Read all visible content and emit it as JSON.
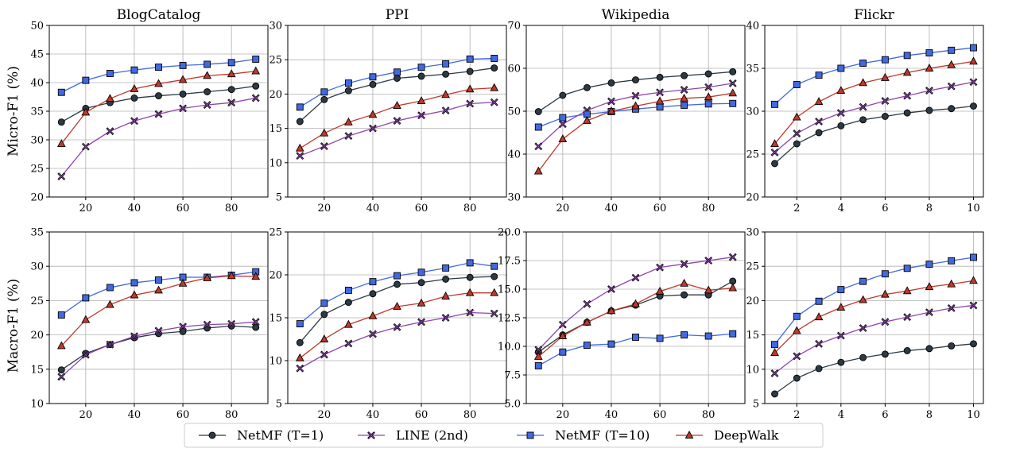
{
  "colors": {
    "netmf_t1": "#2b3a45",
    "line_2nd": "#8e44ad",
    "netmf_t10": "#4169e1",
    "deepwalk": "#c0392b"
  },
  "legend": [
    {
      "name": "NetMF (T=1)",
      "color": "#2b3a45",
      "marker": "circle"
    },
    {
      "name": "LINE (2nd)",
      "color": "#8e44ad",
      "marker": "x"
    },
    {
      "name": "NetMF (T=10)",
      "color": "#4169e1",
      "marker": "square"
    },
    {
      "name": "DeepWalk",
      "color": "#c0392b",
      "marker": "triangle"
    }
  ],
  "row_labels": [
    "Micro-F1 (%)",
    "Macro-F1 (%)"
  ],
  "chart_data": [
    {
      "type": "line",
      "row": 0,
      "col": 0,
      "title": "BlogCatalog",
      "x": [
        10,
        20,
        30,
        40,
        50,
        60,
        70,
        80,
        90
      ],
      "xlim": [
        5,
        95
      ],
      "xticks": [
        20,
        40,
        60,
        80
      ],
      "ylim": [
        20,
        50
      ],
      "yticks": [
        20,
        25,
        30,
        35,
        40,
        45,
        50
      ],
      "ytick_labels": [
        "20",
        "25",
        "30",
        "35",
        "40",
        "45",
        "50"
      ],
      "grid": true,
      "series": [
        {
          "name": "NetMF (T=1)",
          "values": [
            33.1,
            35.5,
            36.5,
            37.3,
            37.7,
            38.0,
            38.4,
            38.8,
            39.4
          ]
        },
        {
          "name": "LINE (2nd)",
          "values": [
            23.6,
            28.8,
            31.5,
            33.3,
            34.5,
            35.5,
            36.1,
            36.5,
            37.3
          ]
        },
        {
          "name": "NetMF (T=10)",
          "values": [
            38.3,
            40.4,
            41.6,
            42.2,
            42.7,
            43.0,
            43.2,
            43.5,
            44.1
          ]
        },
        {
          "name": "DeepWalk",
          "values": [
            29.3,
            34.8,
            37.2,
            38.9,
            39.8,
            40.5,
            41.2,
            41.5,
            42.0
          ]
        }
      ]
    },
    {
      "type": "line",
      "row": 0,
      "col": 1,
      "title": "PPI",
      "x": [
        10,
        20,
        30,
        40,
        50,
        60,
        70,
        80,
        90
      ],
      "xlim": [
        5,
        95
      ],
      "xticks": [
        20,
        40,
        60,
        80
      ],
      "ylim": [
        5,
        30
      ],
      "yticks": [
        5,
        10,
        15,
        20,
        25,
        30
      ],
      "ytick_labels": [
        "5",
        "10",
        "15",
        "20",
        "25",
        "30"
      ],
      "grid": true,
      "series": [
        {
          "name": "NetMF (T=1)",
          "values": [
            16.0,
            19.2,
            20.5,
            21.4,
            22.3,
            22.6,
            22.9,
            23.3,
            23.8
          ]
        },
        {
          "name": "LINE (2nd)",
          "values": [
            11.0,
            12.4,
            13.9,
            15.0,
            16.1,
            16.9,
            17.6,
            18.6,
            18.8
          ]
        },
        {
          "name": "NetMF (T=10)",
          "values": [
            18.1,
            20.3,
            21.6,
            22.5,
            23.2,
            23.9,
            24.4,
            25.1,
            25.2
          ]
        },
        {
          "name": "DeepWalk",
          "values": [
            12.1,
            14.3,
            15.9,
            17.0,
            18.3,
            19.0,
            19.9,
            20.7,
            20.9
          ]
        }
      ]
    },
    {
      "type": "line",
      "row": 0,
      "col": 2,
      "title": "Wikipedia",
      "x": [
        10,
        20,
        30,
        40,
        50,
        60,
        70,
        80,
        90
      ],
      "xlim": [
        5,
        95
      ],
      "xticks": [
        20,
        40,
        60,
        80
      ],
      "ylim": [
        30,
        70
      ],
      "yticks": [
        30,
        40,
        50,
        60,
        70
      ],
      "ytick_labels": [
        "30",
        "40",
        "50",
        "60",
        "70"
      ],
      "grid": true,
      "series": [
        {
          "name": "NetMF (T=1)",
          "values": [
            49.9,
            53.7,
            55.5,
            56.6,
            57.3,
            57.9,
            58.3,
            58.7,
            59.2
          ]
        },
        {
          "name": "LINE (2nd)",
          "values": [
            41.8,
            47.0,
            50.2,
            52.3,
            53.6,
            54.4,
            55.0,
            55.6,
            56.5
          ]
        },
        {
          "name": "NetMF (T=10)",
          "values": [
            46.3,
            48.5,
            49.3,
            49.9,
            50.5,
            51.0,
            51.4,
            51.7,
            51.8
          ]
        },
        {
          "name": "DeepWalk",
          "values": [
            36.0,
            43.5,
            47.8,
            50.0,
            51.2,
            52.3,
            53.0,
            53.3,
            54.2
          ]
        }
      ]
    },
    {
      "type": "line",
      "row": 0,
      "col": 3,
      "title": "Flickr",
      "x": [
        1,
        2,
        3,
        4,
        5,
        6,
        7,
        8,
        9,
        10
      ],
      "xlim": [
        0.55,
        10.45
      ],
      "xticks": [
        2,
        4,
        6,
        8,
        10
      ],
      "ylim": [
        20,
        40
      ],
      "yticks": [
        20,
        25,
        30,
        35,
        40
      ],
      "ytick_labels": [
        "20",
        "25",
        "30",
        "35",
        "40"
      ],
      "grid": true,
      "series": [
        {
          "name": "NetMF (T=1)",
          "values": [
            23.9,
            26.2,
            27.5,
            28.3,
            29.0,
            29.4,
            29.8,
            30.1,
            30.3,
            30.6
          ]
        },
        {
          "name": "LINE (2nd)",
          "values": [
            25.2,
            27.4,
            28.8,
            29.8,
            30.5,
            31.2,
            31.8,
            32.4,
            32.9,
            33.4
          ]
        },
        {
          "name": "NetMF (T=10)",
          "values": [
            30.8,
            33.1,
            34.2,
            35.0,
            35.6,
            36.0,
            36.5,
            36.8,
            37.1,
            37.4
          ]
        },
        {
          "name": "DeepWalk",
          "values": [
            26.2,
            29.3,
            31.1,
            32.4,
            33.3,
            33.9,
            34.5,
            35.0,
            35.4,
            35.8
          ]
        }
      ]
    },
    {
      "type": "line",
      "row": 1,
      "col": 0,
      "title": "",
      "x": [
        10,
        20,
        30,
        40,
        50,
        60,
        70,
        80,
        90
      ],
      "xlim": [
        5,
        95
      ],
      "xticks": [
        20,
        40,
        60,
        80
      ],
      "ylim": [
        10,
        35
      ],
      "yticks": [
        10,
        15,
        20,
        25,
        30,
        35
      ],
      "ytick_labels": [
        "10",
        "15",
        "20",
        "25",
        "30",
        "35"
      ],
      "grid": true,
      "series": [
        {
          "name": "NetMF (T=1)",
          "values": [
            14.9,
            17.3,
            18.6,
            19.6,
            20.2,
            20.5,
            21.0,
            21.3,
            21.1
          ]
        },
        {
          "name": "LINE (2nd)",
          "values": [
            13.9,
            17.1,
            18.6,
            19.8,
            20.6,
            21.2,
            21.5,
            21.6,
            21.9
          ]
        },
        {
          "name": "NetMF (T=10)",
          "values": [
            22.9,
            25.4,
            26.9,
            27.6,
            28.0,
            28.4,
            28.4,
            28.7,
            29.2
          ]
        },
        {
          "name": "DeepWalk",
          "values": [
            18.4,
            22.2,
            24.4,
            25.8,
            26.5,
            27.5,
            28.3,
            28.6,
            28.5
          ]
        }
      ]
    },
    {
      "type": "line",
      "row": 1,
      "col": 1,
      "title": "",
      "x": [
        10,
        20,
        30,
        40,
        50,
        60,
        70,
        80,
        90
      ],
      "xlim": [
        5,
        95
      ],
      "xticks": [
        20,
        40,
        60,
        80
      ],
      "ylim": [
        5,
        25
      ],
      "yticks": [
        5,
        10,
        15,
        20,
        25
      ],
      "ytick_labels": [
        "5",
        "10",
        "15",
        "20",
        "25"
      ],
      "grid": true,
      "series": [
        {
          "name": "NetMF (T=1)",
          "values": [
            12.1,
            15.4,
            16.8,
            17.8,
            18.9,
            19.1,
            19.5,
            19.7,
            19.8
          ]
        },
        {
          "name": "LINE (2nd)",
          "values": [
            9.1,
            10.7,
            12.0,
            13.1,
            13.9,
            14.5,
            15.0,
            15.6,
            15.5
          ]
        },
        {
          "name": "NetMF (T=10)",
          "values": [
            14.3,
            16.7,
            18.2,
            19.2,
            19.9,
            20.3,
            20.8,
            21.4,
            21.0
          ]
        },
        {
          "name": "DeepWalk",
          "values": [
            10.3,
            12.5,
            14.2,
            15.2,
            16.3,
            16.7,
            17.5,
            17.9,
            17.9
          ]
        }
      ]
    },
    {
      "type": "line",
      "row": 1,
      "col": 2,
      "title": "",
      "x": [
        10,
        20,
        30,
        40,
        50,
        60,
        70,
        80,
        90
      ],
      "xlim": [
        5,
        95
      ],
      "xticks": [
        20,
        40,
        60,
        80
      ],
      "ylim": [
        5,
        20
      ],
      "yticks": [
        5,
        7.5,
        10,
        12.5,
        15,
        17.5,
        20
      ],
      "ytick_labels": [
        "5.0",
        "7.5",
        "10.0",
        "12.5",
        "15.0",
        "17.5",
        "20.0"
      ],
      "grid": true,
      "series": [
        {
          "name": "NetMF (T=1)",
          "values": [
            9.5,
            11.0,
            12.1,
            13.1,
            13.6,
            14.4,
            14.5,
            14.5,
            15.7
          ]
        },
        {
          "name": "LINE (2nd)",
          "values": [
            9.7,
            11.9,
            13.7,
            15.0,
            16.0,
            16.9,
            17.2,
            17.5,
            17.8
          ]
        },
        {
          "name": "NetMF (T=10)",
          "values": [
            8.3,
            9.5,
            10.1,
            10.2,
            10.8,
            10.7,
            11.0,
            10.9,
            11.1
          ]
        },
        {
          "name": "DeepWalk",
          "values": [
            9.1,
            10.9,
            12.1,
            13.1,
            13.7,
            14.8,
            15.5,
            14.9,
            15.1
          ]
        }
      ]
    },
    {
      "type": "line",
      "row": 1,
      "col": 3,
      "title": "",
      "x": [
        1,
        2,
        3,
        4,
        5,
        6,
        7,
        8,
        9,
        10
      ],
      "xlim": [
        0.55,
        10.45
      ],
      "xticks": [
        2,
        4,
        6,
        8,
        10
      ],
      "ylim": [
        5,
        30
      ],
      "yticks": [
        5,
        10,
        15,
        20,
        25,
        30
      ],
      "ytick_labels": [
        "5",
        "10",
        "15",
        "20",
        "25",
        "30"
      ],
      "grid": true,
      "series": [
        {
          "name": "NetMF (T=1)",
          "values": [
            6.4,
            8.7,
            10.1,
            11.0,
            11.7,
            12.2,
            12.7,
            13.0,
            13.4,
            13.7
          ]
        },
        {
          "name": "LINE (2nd)",
          "values": [
            9.4,
            11.9,
            13.7,
            14.9,
            16.0,
            16.9,
            17.6,
            18.3,
            18.9,
            19.3
          ]
        },
        {
          "name": "NetMF (T=10)",
          "values": [
            13.6,
            17.7,
            19.9,
            21.6,
            22.8,
            23.9,
            24.7,
            25.3,
            25.8,
            26.3
          ]
        },
        {
          "name": "DeepWalk",
          "values": [
            12.4,
            15.6,
            17.6,
            19.0,
            20.1,
            20.9,
            21.4,
            22.0,
            22.4,
            22.9
          ]
        }
      ]
    }
  ]
}
